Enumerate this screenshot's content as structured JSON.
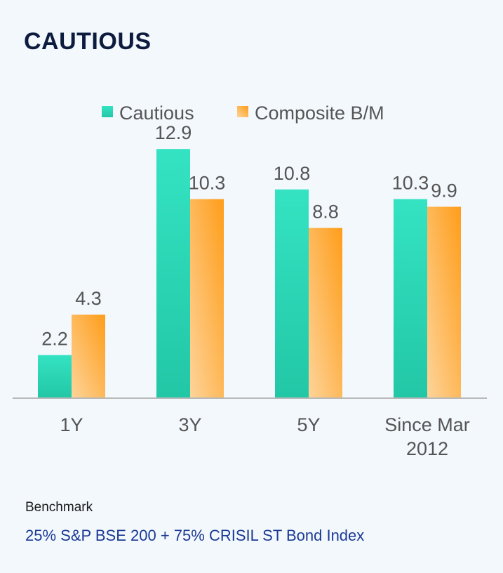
{
  "title": "CAUTIOUS",
  "benchmark": {
    "label": "Benchmark",
    "value": "25% S&P BSE 200 + 75% CRISIL ST Bond Index"
  },
  "colors": {
    "cautious_light": "#34e3c2",
    "cautious_dark": "#22c7a6",
    "composite_light": "#fdd49a",
    "composite_dark": "#ff9d1a",
    "axis": "#b9b9b9",
    "text": "#555555"
  },
  "chart_data": {
    "type": "bar",
    "categories": [
      "1Y",
      "3Y",
      "5Y",
      "Since Mar 2012"
    ],
    "series": [
      {
        "name": "Cautious",
        "values": [
          2.2,
          12.9,
          10.8,
          10.3
        ]
      },
      {
        "name": "Composite B/M",
        "values": [
          4.3,
          10.3,
          8.8,
          9.9
        ]
      }
    ],
    "ylim": [
      0,
      14
    ],
    "legend": "top",
    "grid": false,
    "data_labels": true
  }
}
